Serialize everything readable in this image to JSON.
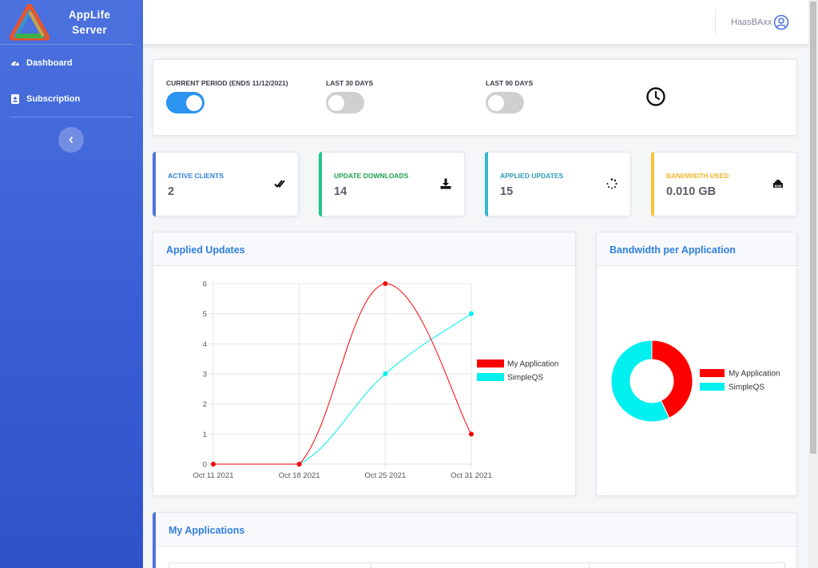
{
  "app": {
    "name_line1": "AppLife",
    "name_line2": "Server"
  },
  "sidebar": {
    "items": [
      {
        "label": "Dashboard",
        "icon": "tachometer-icon"
      },
      {
        "label": "Subscription",
        "icon": "id-card-icon"
      }
    ],
    "collapse_icon": "chevron-left-icon"
  },
  "topbar": {
    "username": "HaasBAxx",
    "user_icon": "user-circle-icon"
  },
  "period": {
    "toggles": [
      {
        "label": "CURRENT PERIOD (ENDS 11/12/2021)",
        "on": true
      },
      {
        "label": "LAST 30 DAYS",
        "on": false
      },
      {
        "label": "LAST 90 DAYS",
        "on": false
      }
    ],
    "icon": "clock-icon"
  },
  "stats": [
    {
      "label": "ACTIVE CLIENTS",
      "value": "2",
      "color": "#4e73df",
      "label_color": "#2f7fde",
      "icon": "double-check-icon"
    },
    {
      "label": "UPDATE DOWNLOADS",
      "value": "14",
      "color": "#1cc88a",
      "label_color": "#1ea34f",
      "icon": "download-icon"
    },
    {
      "label": "APPLIED UPDATES",
      "value": "15",
      "color": "#36b9cc",
      "label_color": "#2a9bb0",
      "icon": "spinner-icon"
    },
    {
      "label": "BANDWIDTH USED",
      "value": "0.010 GB",
      "color": "#f6c23e",
      "label_color": "#f0b428",
      "icon": "ethernet-icon"
    }
  ],
  "applied_updates": {
    "title": "Applied Updates"
  },
  "bandwidth": {
    "title": "Bandwidth per Application"
  },
  "my_applications": {
    "title": "My Applications"
  },
  "chart_data": [
    {
      "type": "line",
      "title": "Applied Updates",
      "categories": [
        "Oct 11 2021",
        "Oct 18 2021",
        "Oct 25 2021",
        "Oct 31 2021"
      ],
      "series": [
        {
          "name": "My Application",
          "values": [
            0,
            0,
            6,
            1
          ],
          "color": "#ff0000"
        },
        {
          "name": "SimpleQS",
          "values": [
            0,
            0,
            3,
            5
          ],
          "color": "#00f0f0"
        }
      ],
      "ylim": [
        0,
        6
      ],
      "yticks": [
        0,
        1,
        2,
        3,
        4,
        5,
        6
      ],
      "grid": true,
      "legend": "right"
    },
    {
      "type": "pie",
      "title": "Bandwidth per Application",
      "donut": true,
      "labels": [
        "My Application",
        "SimpleQS"
      ],
      "values": [
        43,
        57
      ],
      "colors": [
        "#ff0000",
        "#00f0f0"
      ],
      "legend": "right"
    }
  ]
}
